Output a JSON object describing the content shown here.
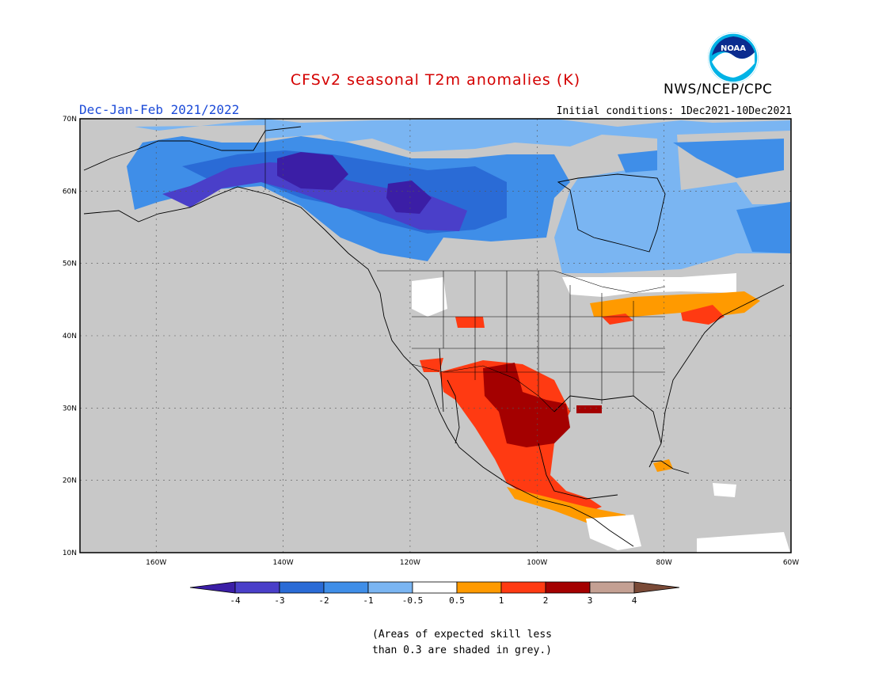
{
  "title": "CFSv2 seasonal T2m anomalies (K)",
  "period": "Dec-Jan-Feb 2021/2022",
  "initial_conditions": "Initial conditions: 1Dec2021-10Dec2021",
  "agency": "NWS/NCEP/CPC",
  "logo_text": "NOAA",
  "map": {
    "region": "North America",
    "lon_range": [
      -172,
      -60
    ],
    "lat_range": [
      10,
      70
    ],
    "lat_labels": [
      "70N",
      "60N",
      "50N",
      "40N",
      "30N",
      "20N",
      "10N"
    ],
    "lon_labels": [
      "160W",
      "140W",
      "120W",
      "100W",
      "80W",
      "60W"
    ],
    "grid": "dotted"
  },
  "colorbar": {
    "labels": [
      "-4",
      "-3",
      "-2",
      "-1",
      "-0.5",
      "0.5",
      "1",
      "2",
      "3",
      "4"
    ],
    "colors": [
      "#3b1ea6",
      "#4a3fc9",
      "#2a6bd6",
      "#3f8ee8",
      "#7ab5f2",
      "#ffffff",
      "#ff9a00",
      "#ff3a12",
      "#a40000",
      "#c4a093",
      "#7a4a37"
    ],
    "grey_color": "#c8c8c8"
  },
  "footnote_line1": "(Areas of expected skill less",
  "footnote_line2": "than 0.3 are shaded in grey.)"
}
